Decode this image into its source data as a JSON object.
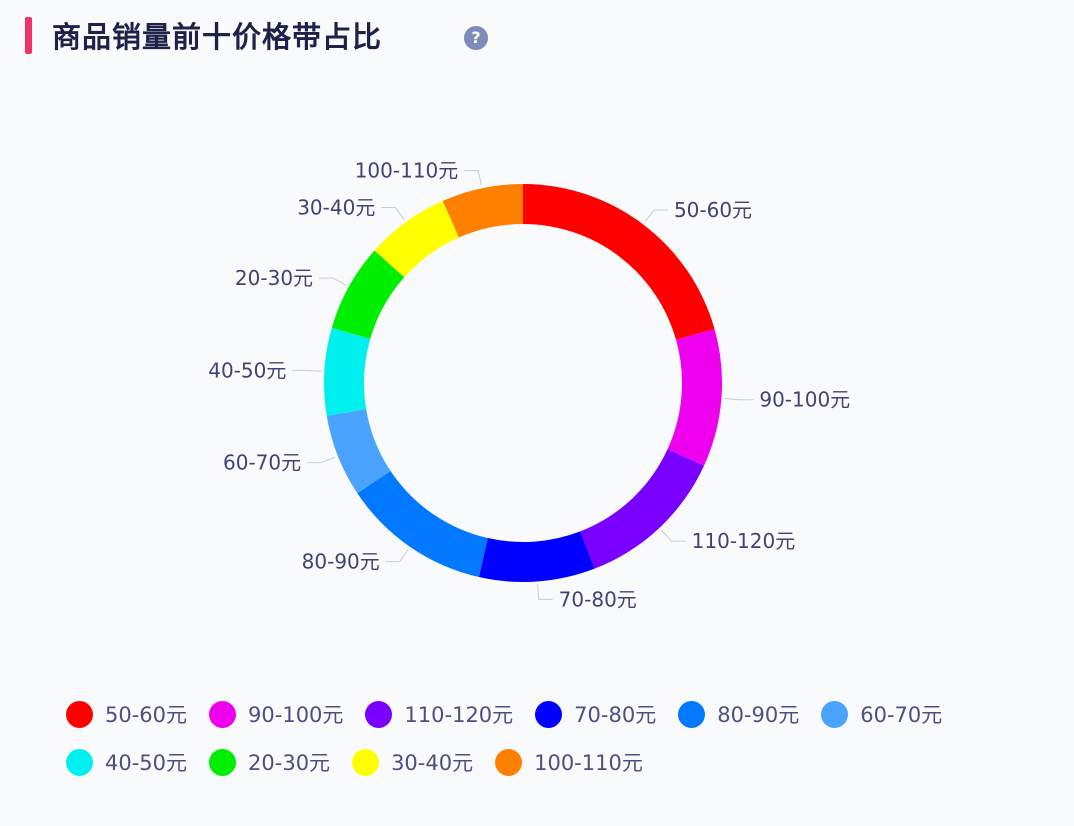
{
  "header": {
    "title": "商品销量前十价格带占比",
    "help_icon": "question-circle-icon"
  },
  "chart_data": {
    "type": "pie",
    "variant": "donut",
    "title": "商品销量前十价格带占比",
    "unit": "%",
    "slices": [
      {
        "label": "50-60元",
        "value": 20.6,
        "color": "#ff0000"
      },
      {
        "label": "90-100元",
        "value": 11.2,
        "color": "#ee00ee"
      },
      {
        "label": "110-120元",
        "value": 12.3,
        "color": "#7a00ff"
      },
      {
        "label": "70-80元",
        "value": 9.4,
        "color": "#0000ff"
      },
      {
        "label": "80-90元",
        "value": 12.1,
        "color": "#0078ff"
      },
      {
        "label": "60-70元",
        "value": 6.7,
        "color": "#4aa3ff"
      },
      {
        "label": "40-50元",
        "value": 7.1,
        "color": "#00f0f0"
      },
      {
        "label": "20-30元",
        "value": 7.1,
        "color": "#00ee00"
      },
      {
        "label": "30-40元",
        "value": 6.8,
        "color": "#ffff00"
      },
      {
        "label": "100-110元",
        "value": 6.6,
        "color": "#ff8000"
      }
    ],
    "legend_placement": "bottom-left"
  }
}
